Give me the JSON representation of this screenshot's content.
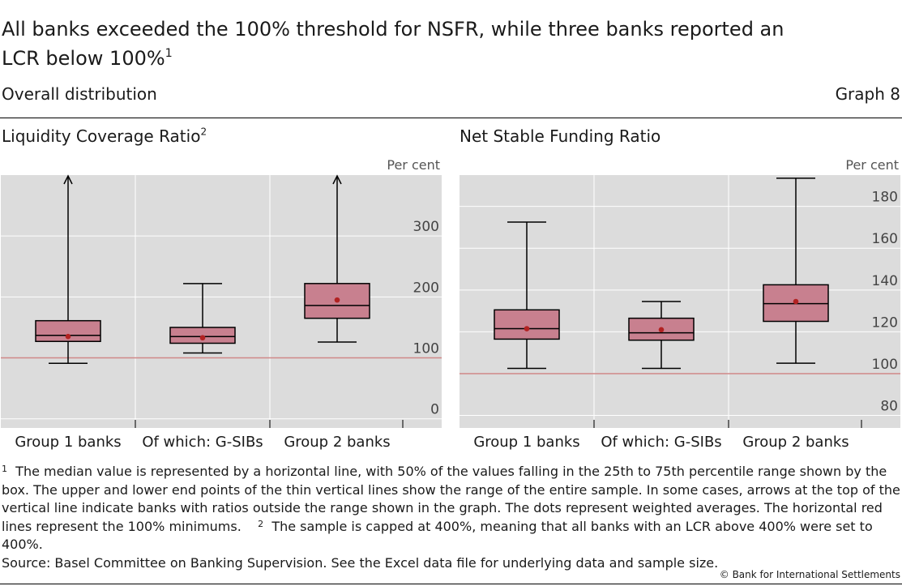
{
  "title": "All banks exceeded the 100% threshold for NSFR, while three banks reported an LCR below 100%",
  "title_note": "1",
  "subtitle": "Overall distribution",
  "graph_number": "Graph 8",
  "colors": {
    "box_fill": "#c8808f",
    "plot_bg": "#dcdcdc",
    "threshold_line": "#d08888",
    "dot": "#b22222"
  },
  "footnotes": {
    "n1_mark": "1",
    "n1_text": "The median value is represented by a horizontal line, with 50% of the values falling in the 25th to 75th percentile range shown by the box. The upper and lower end points of the thin vertical lines show the range of the entire sample. In some cases, arrows at the top of the vertical line indicate banks with ratios outside the range shown in the graph. The dots represent weighted averages. The horizontal red lines represent the 100% minimums.",
    "n2_mark": "2",
    "n2_text": "The sample is capped at 400%, meaning that all banks with an LCR above 400% were set to 400%."
  },
  "source": "Source: Basel Committee on Banking Supervision. See the Excel data file for underlying data and sample size.",
  "copyright": "© Bank for International Settlements",
  "chart_data": [
    {
      "type": "box",
      "title": "Liquidity Coverage Ratio",
      "title_note": "2",
      "unit_label": "Per cent",
      "categories": [
        "Group 1 banks",
        "Of which: G-SIBs",
        "Group 2 banks"
      ],
      "ylim": [
        -15,
        400
      ],
      "yticks": [
        0,
        100,
        200,
        300
      ],
      "threshold": 100,
      "grid": true,
      "boxes": [
        {
          "min": 91,
          "q1": 127,
          "median": 137,
          "q3": 161,
          "max": 400,
          "mean": 135,
          "arrow": true
        },
        {
          "min": 108,
          "q1": 124,
          "median": 135,
          "q3": 150,
          "max": 222,
          "mean": 133,
          "arrow": false
        },
        {
          "min": 126,
          "q1": 165,
          "median": 186,
          "q3": 222,
          "max": 400,
          "mean": 195,
          "arrow": true
        }
      ]
    },
    {
      "type": "box",
      "title": "Net Stable Funding Ratio",
      "unit_label": "Per cent",
      "categories": [
        "Group 1 banks",
        "Of which: G-SIBs",
        "Group 2 banks"
      ],
      "ylim": [
        74,
        195
      ],
      "yticks": [
        80,
        100,
        120,
        140,
        160,
        180
      ],
      "threshold": 100,
      "grid": true,
      "boxes": [
        {
          "min": 102.5,
          "q1": 116.5,
          "median": 121.5,
          "q3": 130.5,
          "max": 172.5,
          "mean": 121.5,
          "arrow": false
        },
        {
          "min": 102.5,
          "q1": 116,
          "median": 119.5,
          "q3": 126.5,
          "max": 134.5,
          "mean": 121,
          "arrow": false
        },
        {
          "min": 105,
          "q1": 125,
          "median": 133.5,
          "q3": 142.5,
          "max": 193.5,
          "mean": 134.5,
          "arrow": false
        }
      ]
    }
  ]
}
